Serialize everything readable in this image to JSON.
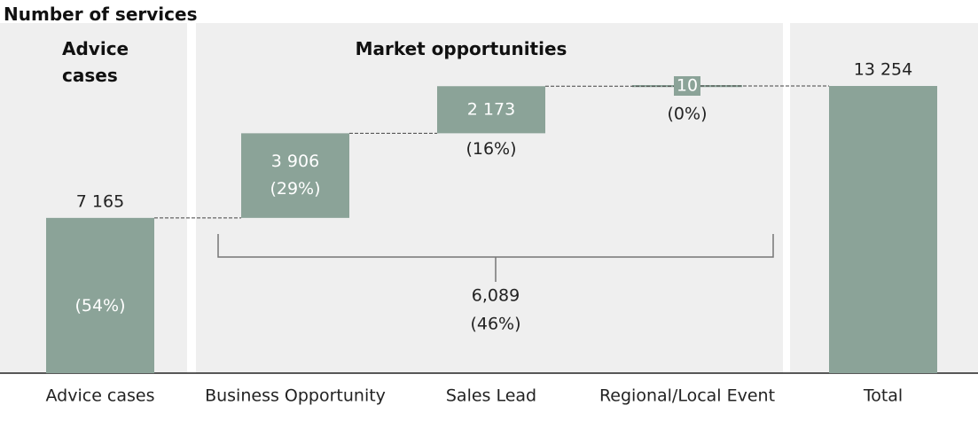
{
  "chart_data": {
    "type": "waterfall",
    "title": "Number of services",
    "groups": [
      "Advice cases",
      "Market opportunities"
    ],
    "categories": [
      "Advice cases",
      "Business Opportunity",
      "Sales Lead",
      "Regional/Local Event",
      "Total"
    ],
    "values": [
      7165,
      3906,
      2173,
      10,
      13254
    ],
    "value_labels": [
      "7 165",
      "3 906",
      "2 173",
      "10",
      "13 254"
    ],
    "shares": [
      54,
      29,
      16,
      0,
      null
    ],
    "share_labels": [
      "(54%)",
      "(29%)",
      "(16%)",
      "(0%)",
      null
    ],
    "bracket": {
      "value": 6089,
      "label": "6,089",
      "share": 46,
      "share_label": "(46%)"
    },
    "color": "#8ba398",
    "ylim": [
      0,
      13254
    ]
  }
}
